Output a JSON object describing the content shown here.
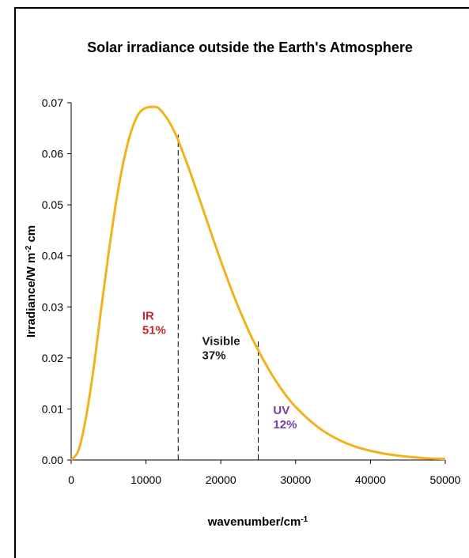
{
  "chart_data": {
    "type": "line",
    "title": "Solar irradiance outside the Earth's Atmosphere",
    "xlabel_main": "wavenumber/cm",
    "xlabel_sup": "-1",
    "ylabel_pre": "Irradiance/W m",
    "ylabel_sup": "-2",
    "ylabel_post": " cm",
    "xlim": [
      0,
      50000
    ],
    "ylim": [
      0,
      0.07
    ],
    "x_ticks": [
      "0",
      "10000",
      "20000",
      "30000",
      "40000",
      "50000"
    ],
    "y_ticks": [
      "0.00",
      "0.01",
      "0.02",
      "0.03",
      "0.04",
      "0.05",
      "0.06",
      "0.07"
    ],
    "series": [
      {
        "color": "#f2b21c",
        "x": [
          0,
          1000,
          2000,
          3000,
          4000,
          5000,
          6000,
          7000,
          8000,
          9000,
          10000,
          11000,
          11500,
          12000,
          13000,
          14000,
          15000,
          16000,
          17000,
          18000,
          19000,
          20000,
          21000,
          22000,
          23000,
          24000,
          25000,
          26000,
          27000,
          28000,
          29000,
          30000,
          32000,
          34000,
          36000,
          38000,
          40000,
          42000,
          44000,
          46000,
          48000,
          50000
        ],
        "y": [
          0,
          0.002,
          0.0085,
          0.018,
          0.0295,
          0.0405,
          0.0505,
          0.0585,
          0.0643,
          0.0678,
          0.069,
          0.0692,
          0.0691,
          0.0685,
          0.0665,
          0.0637,
          0.06,
          0.056,
          0.0518,
          0.0475,
          0.0432,
          0.039,
          0.035,
          0.0312,
          0.0277,
          0.0244,
          0.0215,
          0.0188,
          0.0163,
          0.0141,
          0.0121,
          0.0104,
          0.0076,
          0.0054,
          0.0038,
          0.0026,
          0.0018,
          0.0012,
          0.0008,
          0.0005,
          0.0003,
          0.0002
        ]
      }
    ],
    "dividers": [
      {
        "x": 14300,
        "y": 0.0637
      },
      {
        "x": 25000,
        "y": 0.0235
      }
    ],
    "annotations": [
      {
        "lines": [
          "IR",
          "51%"
        ],
        "x": 9500,
        "y": 0.0275,
        "color": "#c0282c"
      },
      {
        "lines": [
          "Visible",
          "37%"
        ],
        "x": 17500,
        "y": 0.0225,
        "color": "#1a1a1a"
      },
      {
        "lines": [
          "UV",
          "12%"
        ],
        "x": 27000,
        "y": 0.009,
        "color": "#7a3ea0"
      }
    ],
    "grid": false
  }
}
